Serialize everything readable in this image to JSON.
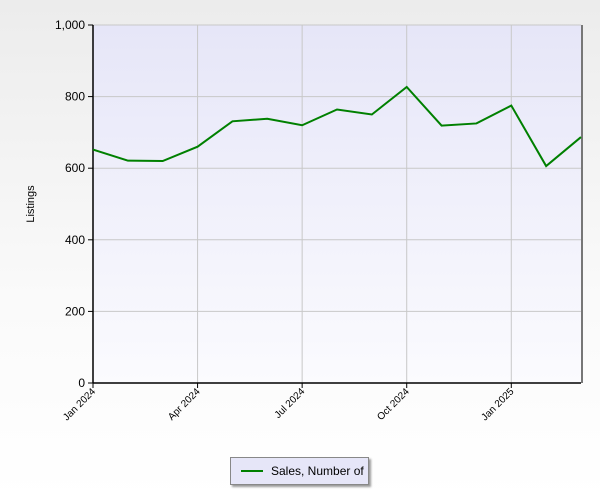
{
  "chart_data": {
    "type": "line",
    "title": "",
    "xlabel": "",
    "ylabel": "Listings",
    "ylim": [
      0,
      1000
    ],
    "yticks": [
      "0",
      "200",
      "400",
      "600",
      "800",
      "1,000"
    ],
    "ytick_values": [
      0,
      200,
      400,
      600,
      800,
      1000
    ],
    "x": [
      "Jan 2024",
      "Feb 2024",
      "Mar 2024",
      "Apr 2024",
      "May 2024",
      "Jun 2024",
      "Jul 2024",
      "Aug 2024",
      "Sep 2024",
      "Oct 2024",
      "Nov 2024",
      "Dec 2024",
      "Jan 2025",
      "Feb 2025",
      "Mar 2025"
    ],
    "xtick_labels": [
      "Jan 2024",
      "Apr 2024",
      "Jul 2024",
      "Oct 2024",
      "Jan 2025"
    ],
    "xtick_index": [
      0,
      3,
      6,
      9,
      12
    ],
    "grid": true,
    "legend_placement": "bottom",
    "series": [
      {
        "name": "Sales, Number of",
        "color": "#008000",
        "values": [
          652,
          621,
          620,
          660,
          731,
          738,
          720,
          764,
          750,
          827,
          719,
          725,
          775,
          606,
          687
        ]
      }
    ]
  },
  "colors": {
    "plot_top": "#e6e6f8",
    "plot_bottom": "#fbfbfe",
    "grid": "#c8c8c8"
  }
}
